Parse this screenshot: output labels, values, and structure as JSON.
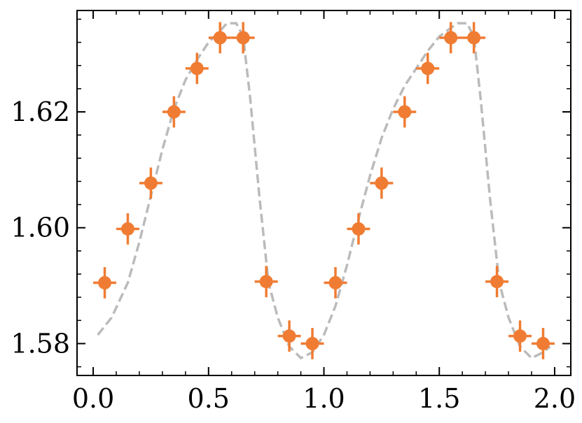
{
  "chart_data": {
    "type": "scatter",
    "title": "",
    "xlabel": "",
    "ylabel": "",
    "xlim": [
      -0.07,
      2.07
    ],
    "ylim": [
      1.5745,
      1.6375
    ],
    "grid": false,
    "x_ticks": [
      0.0,
      0.5,
      1.0,
      1.5,
      2.0
    ],
    "x_tick_labels": [
      "0.0",
      "0.5",
      "1.0",
      "1.5",
      "2.0"
    ],
    "y_ticks": [
      1.58,
      1.6,
      1.62
    ],
    "y_tick_labels": [
      "1.58",
      "1.60",
      "1.62"
    ],
    "series": [
      {
        "kind": "errorbar",
        "color": "#f07c33",
        "x": [
          0.05,
          0.15,
          0.25,
          0.35,
          0.45,
          0.55,
          0.65,
          0.75,
          0.85,
          0.95,
          1.05,
          1.15,
          1.25,
          1.35,
          1.45,
          1.55,
          1.65,
          1.75,
          1.85,
          1.95
        ],
        "y": [
          1.5905,
          1.5998,
          1.6077,
          1.62,
          1.6275,
          1.6328,
          1.6328,
          1.5907,
          1.5813,
          1.58,
          1.5905,
          1.5998,
          1.6077,
          1.62,
          1.6275,
          1.6328,
          1.6328,
          1.5907,
          1.5813,
          1.58
        ],
        "xerr": 0.05,
        "yerr": 0.0027
      },
      {
        "kind": "line",
        "style": "dashed",
        "color": "#bbbbbb",
        "x": [
          0.02,
          0.08,
          0.15,
          0.2,
          0.25,
          0.3,
          0.35,
          0.4,
          0.45,
          0.5,
          0.55,
          0.58,
          0.62,
          0.65,
          0.68,
          0.72,
          0.76,
          0.8,
          0.85,
          0.9,
          0.95,
          1.0,
          1.05,
          1.1,
          1.15,
          1.2,
          1.25,
          1.3,
          1.35,
          1.4,
          1.45,
          1.5,
          1.55,
          1.58,
          1.62,
          1.65,
          1.68,
          1.72,
          1.76,
          1.8,
          1.85,
          1.9,
          1.95,
          1.98
        ],
        "y": [
          1.5815,
          1.5845,
          1.5905,
          1.5975,
          1.6055,
          1.6135,
          1.6205,
          1.6255,
          1.629,
          1.632,
          1.634,
          1.6353,
          1.6353,
          1.633,
          1.6225,
          1.6055,
          1.5905,
          1.5845,
          1.5795,
          1.5775,
          1.5785,
          1.5815,
          1.5865,
          1.5935,
          1.6015,
          1.609,
          1.6155,
          1.6205,
          1.6245,
          1.6275,
          1.6305,
          1.633,
          1.6345,
          1.6353,
          1.6353,
          1.633,
          1.622,
          1.605,
          1.5905,
          1.5845,
          1.5795,
          1.5775,
          1.5785,
          1.5795
        ]
      }
    ]
  }
}
